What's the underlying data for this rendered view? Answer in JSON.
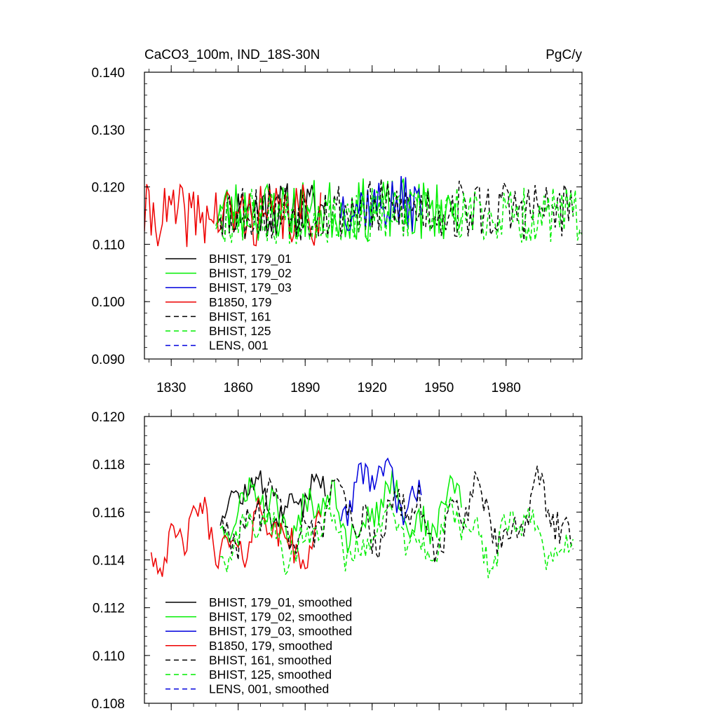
{
  "figure": {
    "title_left": "CaCO3_100m, IND_18S-30N",
    "title_right": "PgC/y"
  },
  "chart_data": [
    {
      "type": "line",
      "title": "CaCO3_100m, IND_18S-30N",
      "units": "PgC/y",
      "xlim": [
        1818,
        2014
      ],
      "ylim": [
        0.09,
        0.14
      ],
      "x_ticks": [
        1830,
        1860,
        1890,
        1920,
        1950,
        1980
      ],
      "y_ticks": [
        "0.090",
        "0.100",
        "0.110",
        "0.120",
        "0.130",
        "0.140"
      ],
      "legend_position": "lower-left",
      "series": [
        {
          "name": "BHIST, 179_01",
          "color": "#000000",
          "dash": "solid",
          "x_start": 1850,
          "x_end": 1899,
          "base": 0.116,
          "amp": 0.0045,
          "seed": 11
        },
        {
          "name": "BHIST, 179_02",
          "color": "#00ee00",
          "dash": "solid",
          "x_start": 1850,
          "x_end": 1960,
          "base": 0.116,
          "amp": 0.005,
          "seed": 23
        },
        {
          "name": "BHIST, 179_03",
          "color": "#0000dd",
          "dash": "solid",
          "x_start": 1906,
          "x_end": 1942,
          "base": 0.117,
          "amp": 0.0045,
          "seed": 37
        },
        {
          "name": "B1850, 179",
          "color": "#ee0000",
          "dash": "solid",
          "x_start": 1818,
          "x_end": 1897,
          "base": 0.115,
          "amp": 0.005,
          "seed": 41
        },
        {
          "name": "BHIST, 161",
          "color": "#000000",
          "dash": "dashed",
          "x_start": 1852,
          "x_end": 2010,
          "base": 0.116,
          "amp": 0.005,
          "seed": 53
        },
        {
          "name": "BHIST, 125",
          "color": "#00ee00",
          "dash": "dashed",
          "x_start": 1850,
          "x_end": 2014,
          "base": 0.115,
          "amp": 0.0045,
          "seed": 67
        },
        {
          "name": "LENS, 001",
          "color": "#0000dd",
          "dash": "dashed",
          "x_start": null,
          "x_end": null,
          "base": null,
          "amp": null,
          "seed": null
        }
      ]
    },
    {
      "type": "line",
      "title": "",
      "units": "PgC/y",
      "xlim": [
        1818,
        2014
      ],
      "ylim": [
        0.108,
        0.12
      ],
      "x_ticks": [
        1830,
        1860,
        1890,
        1920,
        1950,
        1980
      ],
      "y_ticks": [
        "0.108",
        "0.110",
        "0.112",
        "0.114",
        "0.116",
        "0.118",
        "0.120"
      ],
      "legend_position": "lower-left",
      "series": [
        {
          "name": "BHIST, 179_01, smoothed",
          "color": "#000000",
          "dash": "solid",
          "x_start": 1852,
          "x_end": 1899,
          "base": 0.1165,
          "amp": 0.0012,
          "seed": 12
        },
        {
          "name": "BHIST, 179_02, smoothed",
          "color": "#00ee00",
          "dash": "solid",
          "x_start": 1852,
          "x_end": 1960,
          "base": 0.116,
          "amp": 0.0015,
          "seed": 24
        },
        {
          "name": "BHIST, 179_03, smoothed",
          "color": "#0000dd",
          "dash": "solid",
          "x_start": 1906,
          "x_end": 1942,
          "base": 0.117,
          "amp": 0.0014,
          "seed": 38
        },
        {
          "name": "B1850, 179, smoothed",
          "color": "#ee0000",
          "dash": "solid",
          "x_start": 1821,
          "x_end": 1897,
          "base": 0.115,
          "amp": 0.0015,
          "seed": 42
        },
        {
          "name": "BHIST, 161, smoothed",
          "color": "#000000",
          "dash": "dashed",
          "x_start": 1853,
          "x_end": 2010,
          "base": 0.1158,
          "amp": 0.0017,
          "seed": 54
        },
        {
          "name": "BHIST, 125, smoothed",
          "color": "#00ee00",
          "dash": "dashed",
          "x_start": 1852,
          "x_end": 2010,
          "base": 0.115,
          "amp": 0.0014,
          "seed": 68
        },
        {
          "name": "LENS, 001, smoothed",
          "color": "#0000dd",
          "dash": "dashed",
          "x_start": null,
          "x_end": null,
          "base": null,
          "amp": null,
          "seed": null
        }
      ]
    }
  ]
}
